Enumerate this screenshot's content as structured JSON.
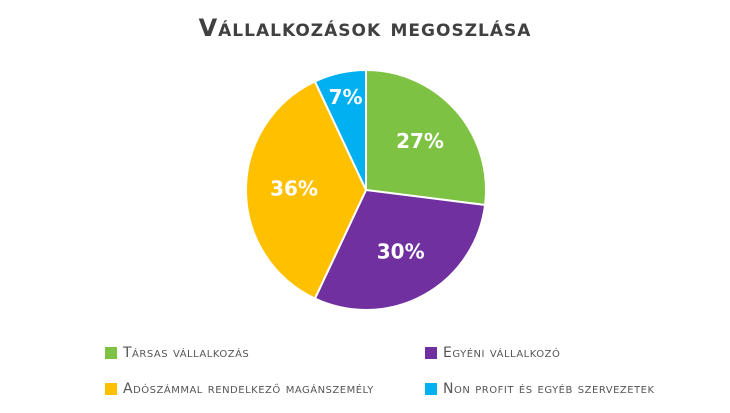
{
  "chart_data": {
    "type": "pie",
    "title": "Vállalkozások megoszlása",
    "categories": [
      "Társas vállalkozás",
      "Egyéni vállalkozó",
      "Adószámmal rendelkező magánszemély",
      "Non profit és egyéb szervezetek"
    ],
    "values": [
      27,
      30,
      36,
      7
    ],
    "value_labels": [
      "27%",
      "30%",
      "36%",
      "7%"
    ],
    "colors": [
      "#7dc242",
      "#7030a0",
      "#ffc000",
      "#00b0f0"
    ]
  }
}
